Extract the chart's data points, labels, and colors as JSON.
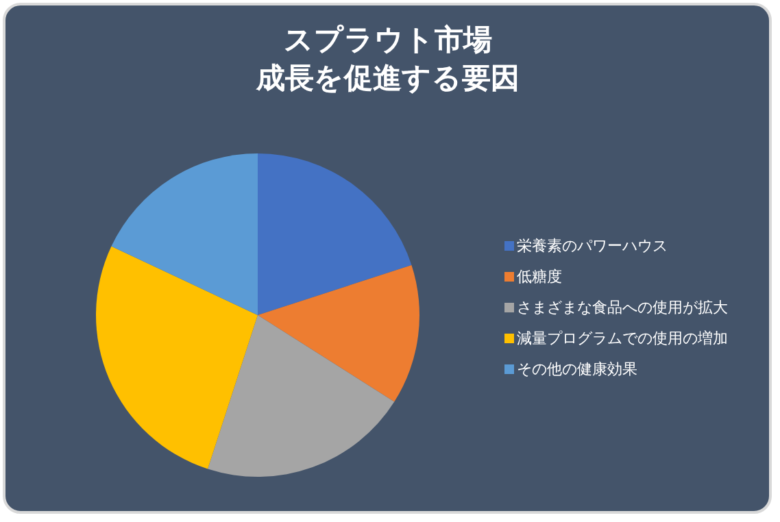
{
  "chart_data": {
    "type": "pie",
    "title": "スプラウト市場",
    "subtitle": "成長を促進する要因",
    "categories": [
      "栄養素のパワーハウス",
      "低糖度",
      "さまざまな食品への使用が拡大",
      "減量プログラムでの使用の増加",
      "その他の健康効果"
    ],
    "values": [
      20,
      14,
      21,
      27,
      18
    ],
    "colors": [
      "#4472c4",
      "#ed7d31",
      "#a5a5a5",
      "#ffc000",
      "#5b9bd5"
    ],
    "legend": "right"
  }
}
